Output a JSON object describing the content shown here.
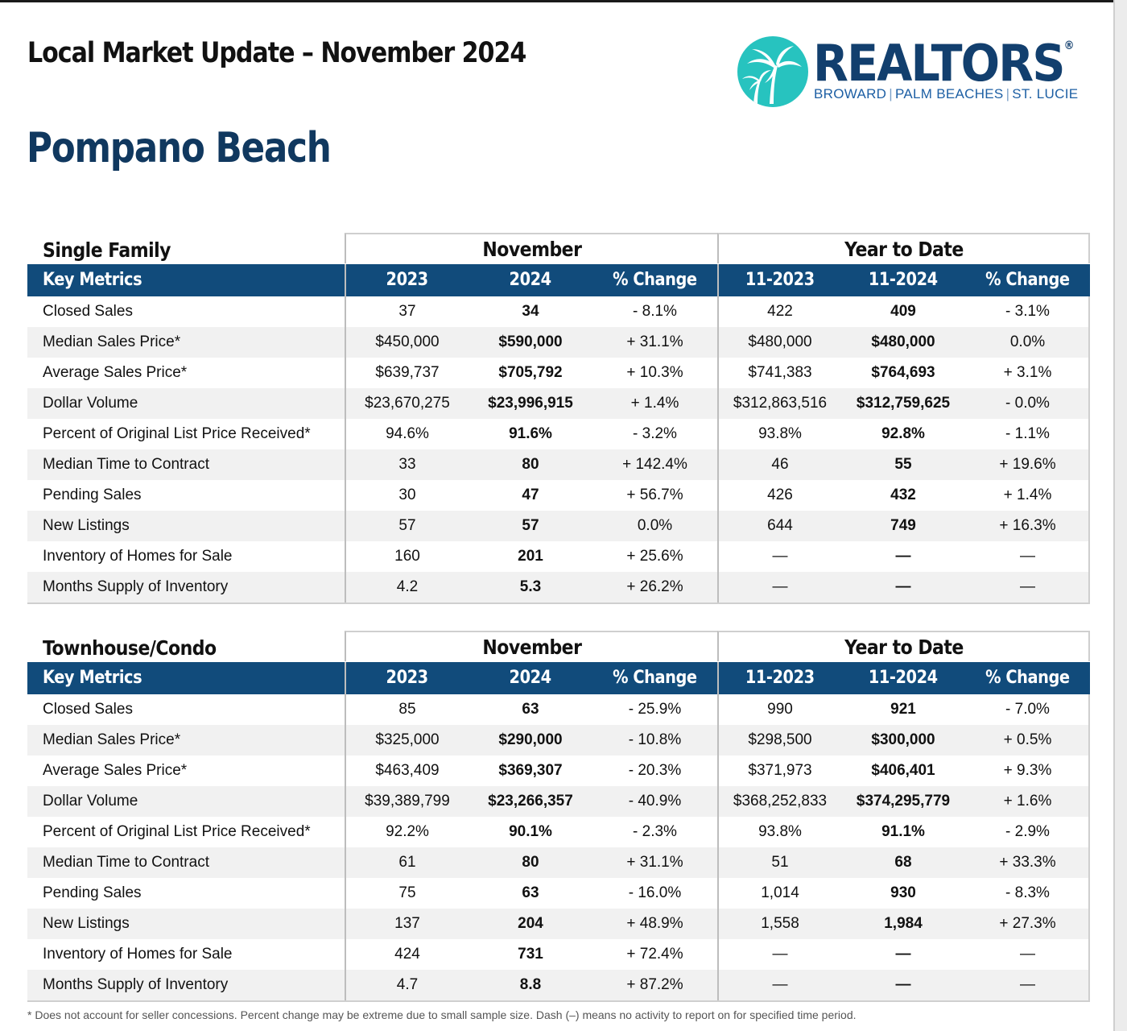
{
  "header": {
    "title": "Local Market Update – November 2024",
    "city": "Pompano Beach"
  },
  "logo": {
    "word": "REALTORS",
    "reg": "®",
    "regions": [
      "BROWARD",
      "PALM BEACHES",
      "ST. LUCIE"
    ],
    "circle_color": "#27c3bf",
    "word_color": "#123f6e"
  },
  "colors": {
    "header_bar": "#114b7b",
    "city_title": "#10385f",
    "row_alt": "#f1f1f1"
  },
  "tables": [
    {
      "title": "Single Family",
      "group_month": "November",
      "group_ytd": "Year to Date",
      "columns": [
        "Key Metrics",
        "2023",
        "2024",
        "% Change",
        "11-2023",
        "11-2024",
        "% Change"
      ],
      "rows": [
        [
          "Closed Sales",
          "37",
          "34",
          "- 8.1%",
          "422",
          "409",
          "- 3.1%"
        ],
        [
          "Median Sales Price*",
          "$450,000",
          "$590,000",
          "+ 31.1%",
          "$480,000",
          "$480,000",
          "0.0%"
        ],
        [
          "Average Sales Price*",
          "$639,737",
          "$705,792",
          "+ 10.3%",
          "$741,383",
          "$764,693",
          "+ 3.1%"
        ],
        [
          "Dollar Volume",
          "$23,670,275",
          "$23,996,915",
          "+ 1.4%",
          "$312,863,516",
          "$312,759,625",
          "- 0.0%"
        ],
        [
          "Percent of Original List Price Received*",
          "94.6%",
          "91.6%",
          "- 3.2%",
          "93.8%",
          "92.8%",
          "- 1.1%"
        ],
        [
          "Median Time to Contract",
          "33",
          "80",
          "+ 142.4%",
          "46",
          "55",
          "+ 19.6%"
        ],
        [
          "Pending Sales",
          "30",
          "47",
          "+ 56.7%",
          "426",
          "432",
          "+ 1.4%"
        ],
        [
          "New Listings",
          "57",
          "57",
          "0.0%",
          "644",
          "749",
          "+ 16.3%"
        ],
        [
          "Inventory of Homes for Sale",
          "160",
          "201",
          "+ 25.6%",
          "—",
          "—",
          "—"
        ],
        [
          "Months Supply of Inventory",
          "4.2",
          "5.3",
          "+ 26.2%",
          "—",
          "—",
          "—"
        ]
      ]
    },
    {
      "title": "Townhouse/Condo",
      "group_month": "November",
      "group_ytd": "Year to Date",
      "columns": [
        "Key Metrics",
        "2023",
        "2024",
        "% Change",
        "11-2023",
        "11-2024",
        "% Change"
      ],
      "rows": [
        [
          "Closed Sales",
          "85",
          "63",
          "- 25.9%",
          "990",
          "921",
          "- 7.0%"
        ],
        [
          "Median Sales Price*",
          "$325,000",
          "$290,000",
          "- 10.8%",
          "$298,500",
          "$300,000",
          "+ 0.5%"
        ],
        [
          "Average Sales Price*",
          "$463,409",
          "$369,307",
          "- 20.3%",
          "$371,973",
          "$406,401",
          "+ 9.3%"
        ],
        [
          "Dollar Volume",
          "$39,389,799",
          "$23,266,357",
          "- 40.9%",
          "$368,252,833",
          "$374,295,779",
          "+ 1.6%"
        ],
        [
          "Percent of Original List Price Received*",
          "92.2%",
          "90.1%",
          "- 2.3%",
          "93.8%",
          "91.1%",
          "- 2.9%"
        ],
        [
          "Median Time to Contract",
          "61",
          "80",
          "+ 31.1%",
          "51",
          "68",
          "+ 33.3%"
        ],
        [
          "Pending Sales",
          "75",
          "63",
          "- 16.0%",
          "1,014",
          "930",
          "- 8.3%"
        ],
        [
          "New Listings",
          "137",
          "204",
          "+ 48.9%",
          "1,558",
          "1,984",
          "+ 27.3%"
        ],
        [
          "Inventory of Homes for Sale",
          "424",
          "731",
          "+ 72.4%",
          "—",
          "—",
          "—"
        ],
        [
          "Months Supply of Inventory",
          "4.7",
          "8.8",
          "+ 87.2%",
          "—",
          "—",
          "—"
        ]
      ]
    }
  ],
  "footnote": "* Does not account for seller concessions. Percent change may be extreme due to small sample size. Dash (–) means no activity to report on for specified time period."
}
